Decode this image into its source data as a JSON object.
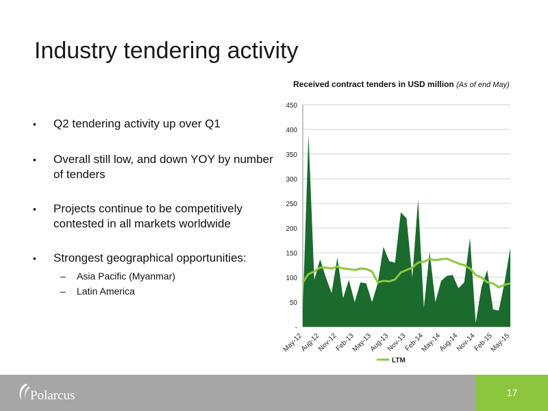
{
  "slide": {
    "title": "Industry tendering activity",
    "page_number": "17",
    "logo_text": "Polarcus",
    "bullets": [
      "Q2 tendering activity up over Q1",
      "Overall still low, and down YOY by number of tenders",
      "Projects continue to be competitively contested in all markets worldwide",
      "Strongest geographical opportunities:"
    ],
    "sub_bullets": [
      "Asia Pacific (Myanmar)",
      "Latin America"
    ],
    "bullet_glyph": "•",
    "dash_glyph": "–"
  },
  "chart_data": {
    "type": "area",
    "title": "Received contract tenders in USD million",
    "title_note": "(As of end May)",
    "xlabel": "",
    "ylabel": "",
    "ylim": [
      0,
      450
    ],
    "yticks": [
      0,
      50,
      100,
      150,
      200,
      250,
      300,
      350,
      400,
      450
    ],
    "ytick_labels": [
      "-",
      "50",
      "100",
      "150",
      "200",
      "250",
      "300",
      "350",
      "400",
      "450"
    ],
    "x": [
      "May-12",
      "Jun-12",
      "Jul-12",
      "Aug-12",
      "Sep-12",
      "Oct-12",
      "Nov-12",
      "Dec-12",
      "Jan-13",
      "Feb-13",
      "Mar-13",
      "Apr-13",
      "May-13",
      "Jun-13",
      "Jul-13",
      "Aug-13",
      "Sep-13",
      "Oct-13",
      "Nov-13",
      "Dec-13",
      "Jan-14",
      "Feb-14",
      "Mar-14",
      "Apr-14",
      "May-14",
      "Jun-14",
      "Jul-14",
      "Aug-14",
      "Sep-14",
      "Oct-14",
      "Nov-14",
      "Dec-14",
      "Jan-15",
      "Feb-15",
      "Mar-15",
      "Apr-15",
      "May-15"
    ],
    "xtick_labels": [
      "May-12",
      "Aug-12",
      "Nov-12",
      "Feb-13",
      "May-13",
      "Aug-13",
      "Nov-13",
      "Feb-14",
      "May-14",
      "Aug-14",
      "Nov-14",
      "Feb-15",
      "May-15"
    ],
    "grid": true,
    "legend_position": "bottom",
    "series": [
      {
        "values": [
          35,
          390,
          95,
          137,
          100,
          68,
          140,
          58,
          95,
          50,
          90,
          88,
          50,
          88,
          162,
          133,
          130,
          232,
          220,
          100,
          258,
          38,
          152,
          50,
          93,
          103,
          105,
          78,
          90,
          180,
          8,
          80,
          115,
          35,
          33,
          90,
          160
        ],
        "color": "#1a6b2d"
      },
      {
        "name": "LTM",
        "values": [
          90,
          107,
          112,
          120,
          120,
          118,
          122,
          118,
          117,
          115,
          118,
          117,
          112,
          90,
          93,
          92,
          96,
          110,
          115,
          120,
          130,
          132,
          137,
          135,
          137,
          138,
          133,
          128,
          125,
          118,
          105,
          100,
          90,
          88,
          80,
          85,
          88
        ],
        "color": "#8cc63f"
      }
    ]
  }
}
